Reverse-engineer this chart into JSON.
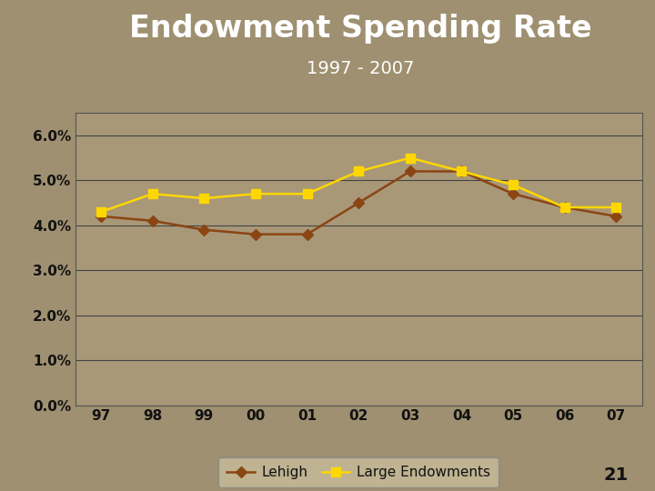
{
  "title": "Endowment Spending Rate",
  "subtitle": "1997 - 2007",
  "years": [
    "97",
    "98",
    "99",
    "00",
    "01",
    "02",
    "03",
    "04",
    "05",
    "06",
    "07"
  ],
  "lehigh": [
    0.042,
    0.041,
    0.039,
    0.038,
    0.038,
    0.045,
    0.052,
    0.052,
    0.047,
    0.044,
    0.042
  ],
  "large_endowments": [
    0.043,
    0.047,
    0.046,
    0.047,
    0.047,
    0.052,
    0.055,
    0.052,
    0.049,
    0.044,
    0.044
  ],
  "lehigh_color": "#8B4513",
  "large_endowments_color": "#FFD700",
  "background_color": "#9E9070",
  "header_color": "#6B0000",
  "plot_bg_color": "#A89878",
  "title_color": "#FFFFFF",
  "ylim": [
    0.0,
    0.065
  ],
  "yticks": [
    0.0,
    0.01,
    0.02,
    0.03,
    0.04,
    0.05,
    0.06
  ],
  "ytick_labels": [
    "0.0%",
    "1.0%",
    "2.0%",
    "3.0%",
    "4.0%",
    "5.0%",
    "6.0%"
  ],
  "page_number": "21",
  "gold_color": "#DAA520",
  "legend_bg": "#C8BC9A",
  "legend_edge": "#888888"
}
